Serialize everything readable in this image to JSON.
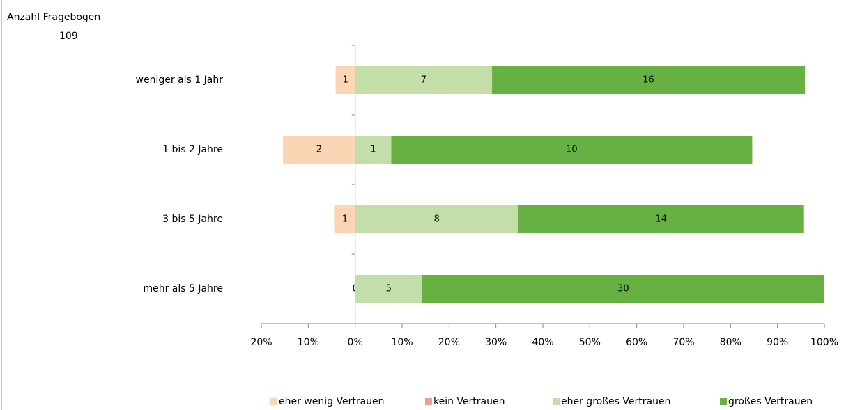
{
  "chart_data": {
    "type": "bar",
    "orientation": "horizontal",
    "stacking": "percent",
    "diverging": true,
    "title": "Anzahl Fragebogen",
    "subtitle": "109",
    "categories": [
      "weniger als 1 Jahr",
      "1 bis 2 Jahre",
      "3 bis 5 Jahre",
      "mehr als 5 Jahre"
    ],
    "series": [
      {
        "name": "eher wenig Vertrauen",
        "color": "#fcd5b5",
        "side": "negative",
        "values": [
          1,
          2,
          1,
          0
        ]
      },
      {
        "name": "kein Vertrauen",
        "color": "#f0a08c",
        "side": "negative",
        "values": [
          0,
          0,
          0,
          0
        ]
      },
      {
        "name": "eher großes Vertrauen",
        "color": "#c3dea8",
        "side": "positive",
        "values": [
          7,
          1,
          8,
          5
        ]
      },
      {
        "name": "großes Vertrauen",
        "color": "#66b142",
        "side": "positive",
        "values": [
          16,
          10,
          14,
          30
        ]
      }
    ],
    "xlim": [
      -20,
      100
    ],
    "xticks": [
      {
        "value": -20,
        "label": "20%"
      },
      {
        "value": -10,
        "label": "10%"
      },
      {
        "value": 0,
        "label": "0%"
      },
      {
        "value": 10,
        "label": "10%"
      },
      {
        "value": 20,
        "label": "20%"
      },
      {
        "value": 30,
        "label": "30%"
      },
      {
        "value": 40,
        "label": "40%"
      },
      {
        "value": 50,
        "label": "50%"
      },
      {
        "value": 60,
        "label": "60%"
      },
      {
        "value": 70,
        "label": "70%"
      },
      {
        "value": 80,
        "label": "80%"
      },
      {
        "value": 90,
        "label": "90%"
      },
      {
        "value": 100,
        "label": "100%"
      }
    ],
    "legend": "bottom",
    "grid": false
  }
}
